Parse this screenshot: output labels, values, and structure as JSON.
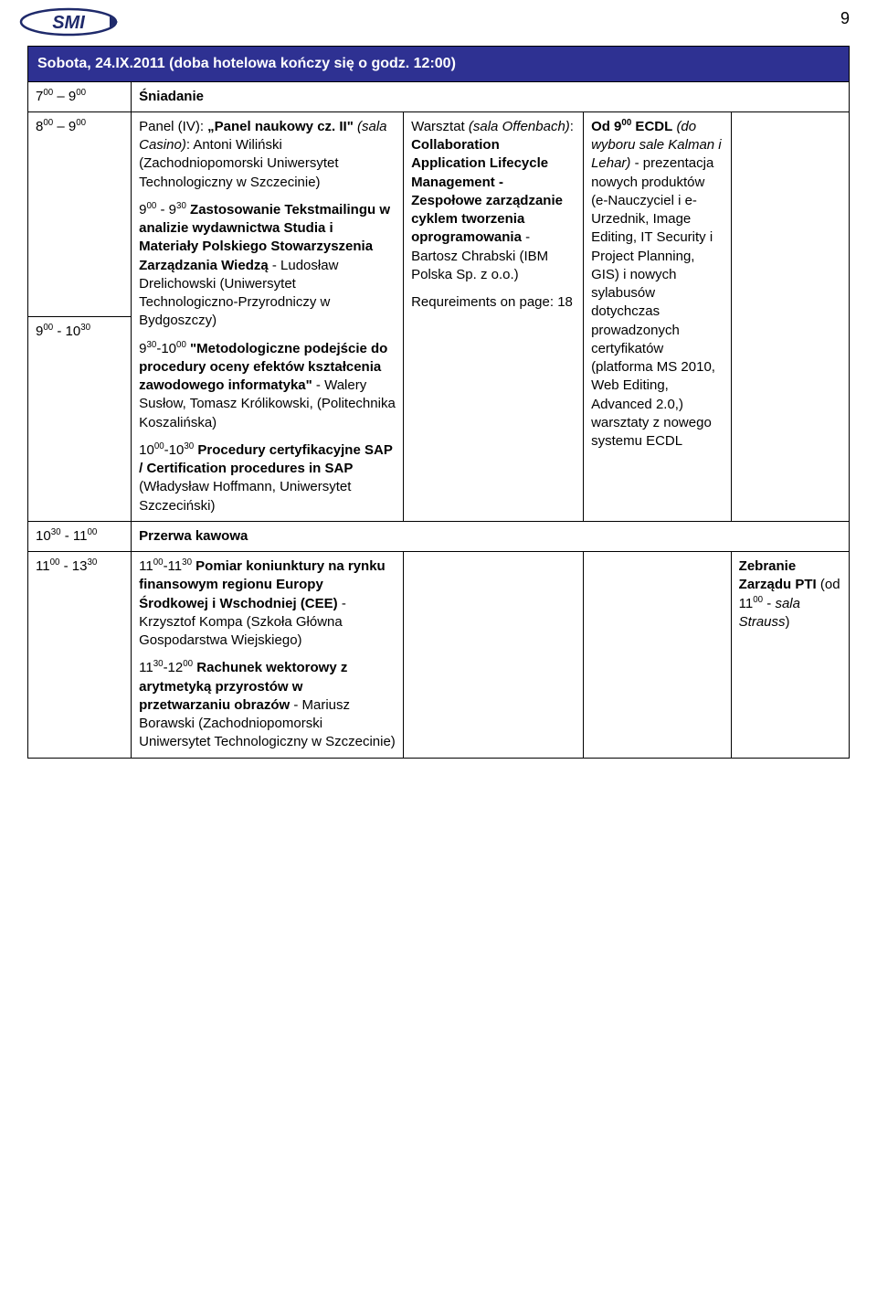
{
  "page_number": "9",
  "day_header": "Sobota, 24.IX.2011 (doba hotelowa kończy się o godz. 12:00)",
  "row1": {
    "time_html": "7<sup>00</sup> – 9<sup>00</sup>",
    "label": "Śniadanie"
  },
  "row2": {
    "time_html": "8<sup>00</sup> – 9<sup>00</sup>"
  },
  "row3": {
    "time_html": "9<sup>00</sup> - 10<sup>30</sup>",
    "panel_title_html": "Panel (IV): <span class=\"bold\">„Panel naukowy cz. II\"</span> <span class=\"it\">(sala Casino)</span>: Antoni Wiliński (Zachodniopomorski Uniwersytet Technologiczny w Szczecinie)",
    "item1_html": "9<sup>00</sup> - 9<sup>30</sup> <span class=\"bold\">Zastosowanie Tekstmailingu w analizie wydawnictwa Studia i Materiały Polskiego Stowarzyszenia Zarządzania Wiedzą</span> - Ludosław Drelichowski (Uniwersytet Technologiczno-Przyrodniczy w Bydgoszczy)",
    "item2_html": "9<sup>30</sup>-10<sup>00</sup> <span class=\"bold\">\"Metodologiczne podejście do procedury oceny efektów kształcenia zawodowego informatyka\"</span> - Walery Susłow, Tomasz Królikowski, (Politechnika Koszalińska)",
    "item3_html": "10<sup>00</sup>-10<sup>30</sup> <span class=\"bold\">Procedury certyfikacyjne SAP / Certification procedures in SAP</span> (Władysław Hoffmann, Uniwersytet Szczeciński)",
    "workshop_html": "Warsztat <span class=\"it\">(sala Offenbach)</span>: <span class=\"bold\">Collaboration Application Lifecycle Management - Zespołowe zarządzanie cyklem tworzenia oprogramowania</span> - Bartosz Chrabski (IBM Polska Sp. z o.o.)",
    "req_html": "Requreiments on page: 18",
    "side_html": "<span class=\"bold\">Od 9<sup>00</sup> ECDL</span> <span class=\"it\">(do wyboru sale Kalman i Lehar)</span> - prezentacja nowych produktów (e-Nauczyciel i e-Urzednik, Image Editing, IT Security i Project Planning, GIS) i nowych sylabusów dotychczas prowadzonych certyfikatów (platforma MS 2010, Web Editing, Advanced 2.0,) warsztaty z nowego systemu ECDL"
  },
  "row4": {
    "time_html": "10<sup>30</sup> - 11<sup>00</sup>",
    "label": "Przerwa kawowa"
  },
  "row5": {
    "time_html": "11<sup>00</sup> - 13<sup>30</sup>",
    "item1_html": "11<sup>00</sup>-11<sup>30</sup> <span class=\"bold\">Pomiar koniunktury na rynku finansowym regionu Europy Środkowej i Wschodniej (CEE)</span> - Krzysztof Kompa (Szkoła Główna Gospodarstwa Wiejskiego)",
    "item2_html": "11<sup>30</sup>-12<sup>00</sup> <span class=\"bold\">Rachunek wektorowy z arytmetyką przyrostów w przetwarzaniu obrazów</span> - Mariusz Borawski (Zachodniopomorski Uniwersytet Technologiczny w Szczecinie)",
    "side_html": "<span class=\"bold\">Zebranie Zarządu PTI</span> (od 11<sup>00</sup> - <span class=\"it\">sala Strauss</span>)"
  }
}
